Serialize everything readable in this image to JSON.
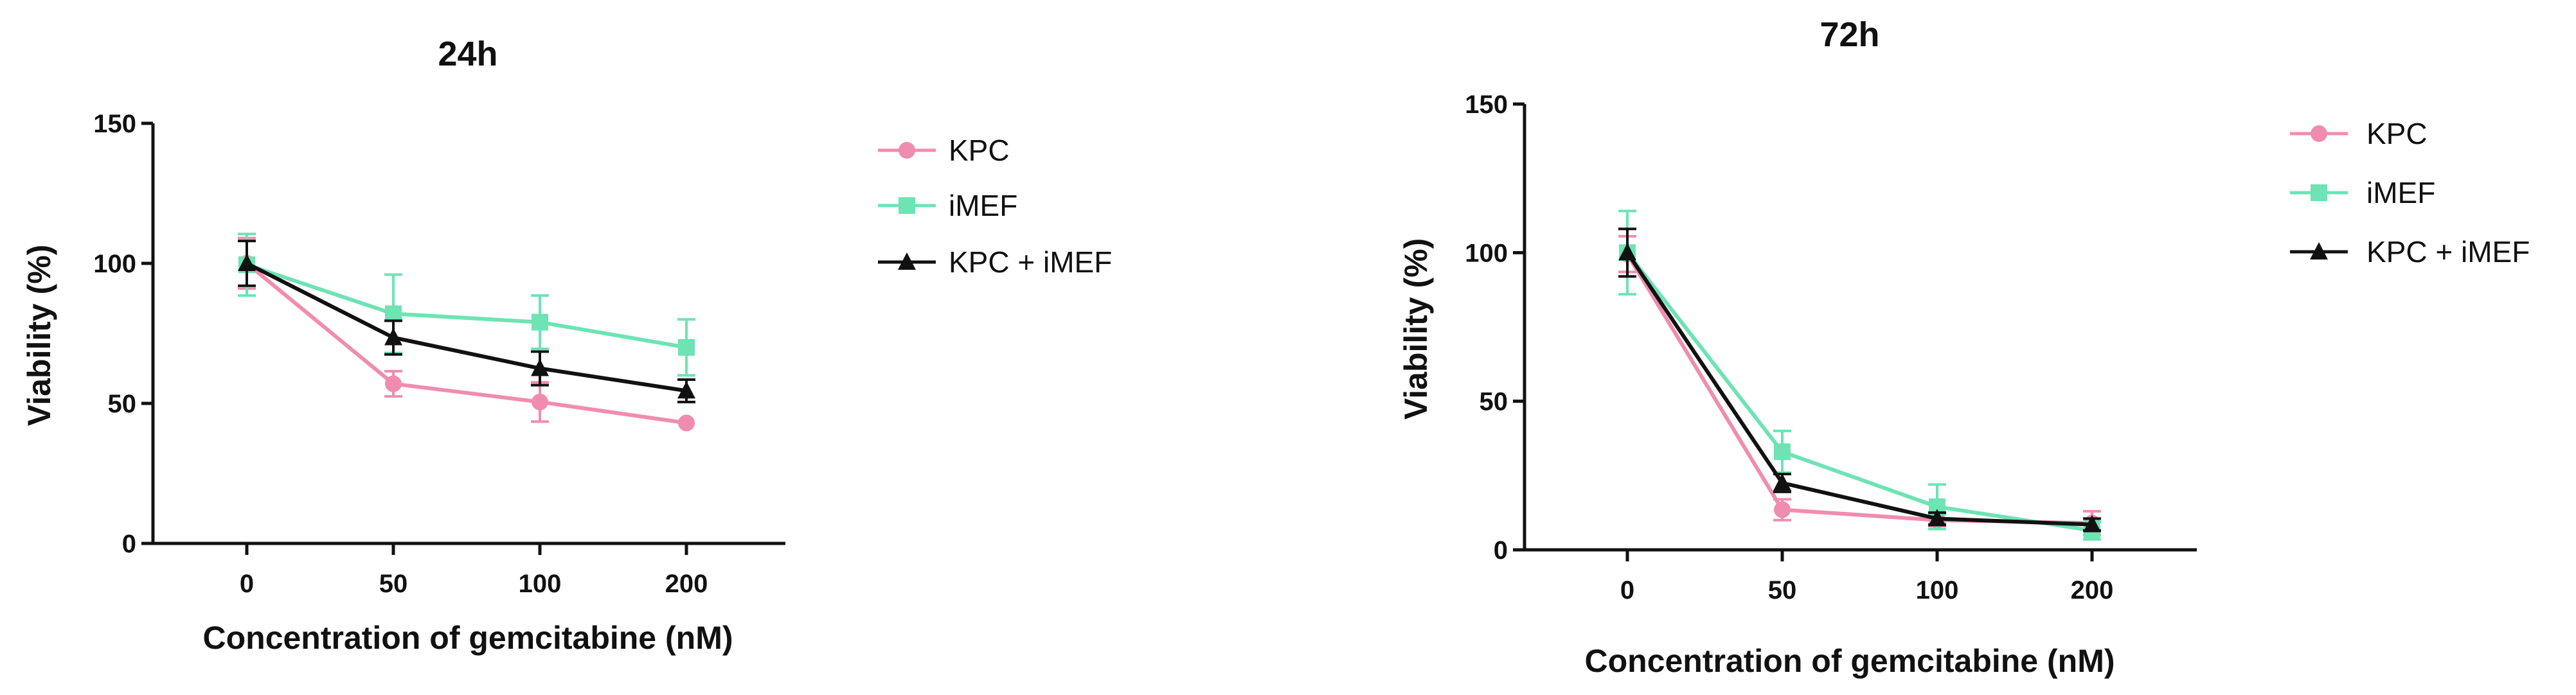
{
  "chart_data": [
    {
      "type": "line",
      "title": "24h",
      "xlabel": "Concentration of gemcitabine (nM)",
      "ylabel": "Viability (%)",
      "categories": [
        "0",
        "50",
        "100",
        "200"
      ],
      "ylim": [
        0,
        150
      ],
      "yticks": [
        "0",
        "50",
        "100",
        "150"
      ],
      "grid": false,
      "legend_position": "right",
      "series": [
        {
          "name": "KPC",
          "marker": "circle",
          "color": "#F08CAF",
          "values": [
            100,
            57,
            50.5,
            43
          ],
          "errors": [
            9,
            4.5,
            7,
            0
          ]
        },
        {
          "name": "iMEF",
          "marker": "square",
          "color": "#6EE3B4",
          "values": [
            99.5,
            82,
            79,
            70
          ],
          "errors": [
            11,
            14,
            9.5,
            10
          ]
        },
        {
          "name": "KPC + iMEF",
          "marker": "triangle",
          "color": "#111111",
          "values": [
            100,
            73.5,
            62.5,
            54.5
          ],
          "errors": [
            8,
            6,
            6,
            4
          ]
        }
      ]
    },
    {
      "type": "line",
      "title": "72h",
      "xlabel": "Concentration of gemcitabine (nM)",
      "ylabel": "Viability (%)",
      "categories": [
        "0",
        "50",
        "100",
        "200"
      ],
      "ylim": [
        0,
        150
      ],
      "yticks": [
        "0",
        "50",
        "100",
        "150"
      ],
      "grid": false,
      "legend_position": "right",
      "series": [
        {
          "name": "KPC",
          "marker": "circle",
          "color": "#F08CAF",
          "values": [
            99.5,
            13.5,
            10,
            9
          ],
          "errors": [
            6,
            3.5,
            2,
            4
          ]
        },
        {
          "name": "iMEF",
          "marker": "square",
          "color": "#6EE3B4",
          "values": [
            100,
            33,
            14.5,
            6.5
          ],
          "errors": [
            14,
            7,
            7.5,
            3
          ]
        },
        {
          "name": "KPC + iMEF",
          "marker": "triangle",
          "color": "#111111",
          "values": [
            100,
            22.5,
            10.5,
            8.5
          ],
          "errors": [
            8,
            3,
            2,
            2
          ]
        }
      ]
    }
  ]
}
